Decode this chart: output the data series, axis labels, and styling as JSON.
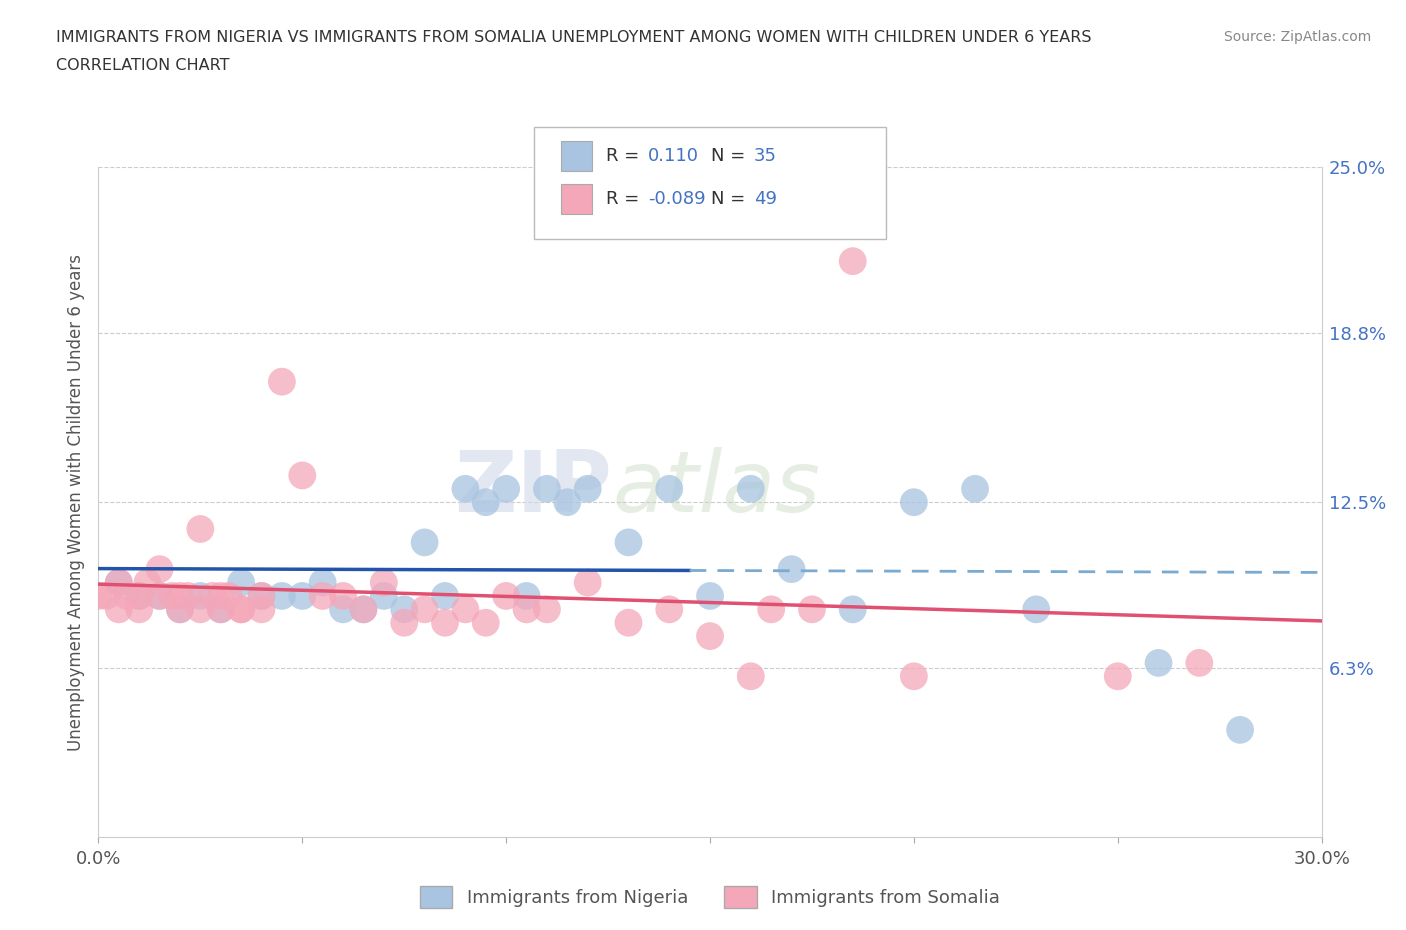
{
  "title_line1": "IMMIGRANTS FROM NIGERIA VS IMMIGRANTS FROM SOMALIA UNEMPLOYMENT AMONG WOMEN WITH CHILDREN UNDER 6 YEARS",
  "title_line2": "CORRELATION CHART",
  "source": "Source: ZipAtlas.com",
  "ylabel": "Unemployment Among Women with Children Under 6 years",
  "xlim": [
    0.0,
    0.3
  ],
  "ylim": [
    0.0,
    0.25
  ],
  "yticks_right": [
    0.063,
    0.125,
    0.188,
    0.25
  ],
  "yticks_right_labels": [
    "6.3%",
    "12.5%",
    "18.8%",
    "25.0%"
  ],
  "nigeria_color": "#a8c4e0",
  "somalia_color": "#f4a7b9",
  "nigeria_line_color": "#2255aa",
  "nigeria_dash_color": "#7aaad0",
  "somalia_line_color": "#e05070",
  "R_nigeria": 0.11,
  "N_nigeria": 35,
  "R_somalia": -0.089,
  "N_somalia": 49,
  "watermark_zip": "ZIP",
  "watermark_atlas": "atlas",
  "legend_nigeria": "Immigrants from Nigeria",
  "legend_somalia": "Immigrants from Somalia",
  "nigeria_x": [
    0.005,
    0.01,
    0.015,
    0.02,
    0.025,
    0.03,
    0.035,
    0.04,
    0.045,
    0.05,
    0.055,
    0.06,
    0.065,
    0.07,
    0.075,
    0.08,
    0.085,
    0.09,
    0.095,
    0.1,
    0.105,
    0.11,
    0.115,
    0.12,
    0.13,
    0.14,
    0.15,
    0.16,
    0.17,
    0.185,
    0.2,
    0.215,
    0.23,
    0.26,
    0.28
  ],
  "nigeria_y": [
    0.095,
    0.09,
    0.09,
    0.085,
    0.09,
    0.085,
    0.095,
    0.09,
    0.09,
    0.09,
    0.095,
    0.085,
    0.085,
    0.09,
    0.085,
    0.11,
    0.09,
    0.13,
    0.125,
    0.13,
    0.09,
    0.13,
    0.125,
    0.13,
    0.11,
    0.13,
    0.09,
    0.13,
    0.1,
    0.085,
    0.125,
    0.13,
    0.085,
    0.065,
    0.04
  ],
  "somalia_x": [
    0.0,
    0.002,
    0.005,
    0.005,
    0.007,
    0.01,
    0.01,
    0.012,
    0.015,
    0.015,
    0.018,
    0.02,
    0.02,
    0.022,
    0.025,
    0.025,
    0.028,
    0.03,
    0.03,
    0.032,
    0.035,
    0.035,
    0.04,
    0.04,
    0.045,
    0.05,
    0.055,
    0.06,
    0.065,
    0.07,
    0.075,
    0.08,
    0.085,
    0.09,
    0.095,
    0.1,
    0.105,
    0.11,
    0.12,
    0.13,
    0.14,
    0.15,
    0.16,
    0.165,
    0.175,
    0.185,
    0.2,
    0.25,
    0.27
  ],
  "somalia_y": [
    0.09,
    0.09,
    0.095,
    0.085,
    0.09,
    0.09,
    0.085,
    0.095,
    0.1,
    0.09,
    0.09,
    0.09,
    0.085,
    0.09,
    0.115,
    0.085,
    0.09,
    0.09,
    0.085,
    0.09,
    0.085,
    0.085,
    0.09,
    0.085,
    0.17,
    0.135,
    0.09,
    0.09,
    0.085,
    0.095,
    0.08,
    0.085,
    0.08,
    0.085,
    0.08,
    0.09,
    0.085,
    0.085,
    0.095,
    0.08,
    0.085,
    0.075,
    0.06,
    0.085,
    0.085,
    0.215,
    0.06,
    0.06,
    0.065
  ]
}
